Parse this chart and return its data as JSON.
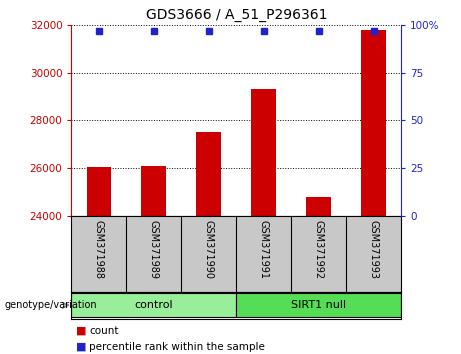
{
  "title": "GDS3666 / A_51_P296361",
  "samples": [
    "GSM371988",
    "GSM371989",
    "GSM371990",
    "GSM371991",
    "GSM371992",
    "GSM371993"
  ],
  "bar_values": [
    26050,
    26100,
    27500,
    29300,
    24800,
    31800
  ],
  "percentile_values": [
    97,
    97,
    97,
    97,
    97,
    97
  ],
  "bar_color": "#cc0000",
  "dot_color": "#2222cc",
  "ylim_left": [
    24000,
    32000
  ],
  "ylim_right": [
    0,
    100
  ],
  "yticks_left": [
    24000,
    26000,
    28000,
    30000,
    32000
  ],
  "yticks_right": [
    0,
    25,
    50,
    75,
    100
  ],
  "yticklabels_right": [
    "0",
    "25",
    "50",
    "75",
    "100%"
  ],
  "baseline": 24000,
  "groups": [
    {
      "label": "control",
      "indices": [
        0,
        1,
        2
      ],
      "color": "#99ee99"
    },
    {
      "label": "SIRT1 null",
      "indices": [
        3,
        4,
        5
      ],
      "color": "#55dd55"
    }
  ],
  "group_label": "genotype/variation",
  "legend_count_label": "count",
  "legend_percentile_label": "percentile rank within the sample",
  "tick_area_color": "#c8c8c8",
  "grid_linestyle": "dotted"
}
